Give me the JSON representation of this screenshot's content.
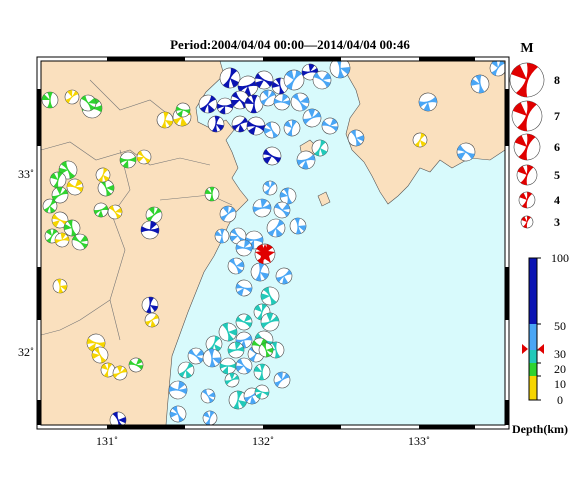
{
  "title": "Period:2004/04/04 00:00––2014/04/04 00:46",
  "axes": {
    "longitude_ticks": [
      "131˚",
      "132˚",
      "133˚"
    ],
    "latitude_ticks": [
      "33˚",
      "32˚"
    ]
  },
  "magnitude_legend": {
    "header": "M",
    "entries": [
      "8",
      "7",
      "6",
      "5",
      "4",
      "3"
    ]
  },
  "depth_colorbar": {
    "labels": [
      "100",
      "50",
      "30",
      "20",
      "10",
      "0"
    ],
    "unit_label": "Depth(km)",
    "colors": {
      "0-10": "#f6d500",
      "10-20": "#2fd32f",
      "20-30": "#22c9b9",
      "30-50": "#4aa6f5",
      "50-100": "#0a14b3"
    },
    "marker_color": "#e00000"
  },
  "map_colors": {
    "land": "#fae0be",
    "sea": "#d8fafc",
    "mainshock": "#e00000"
  }
}
